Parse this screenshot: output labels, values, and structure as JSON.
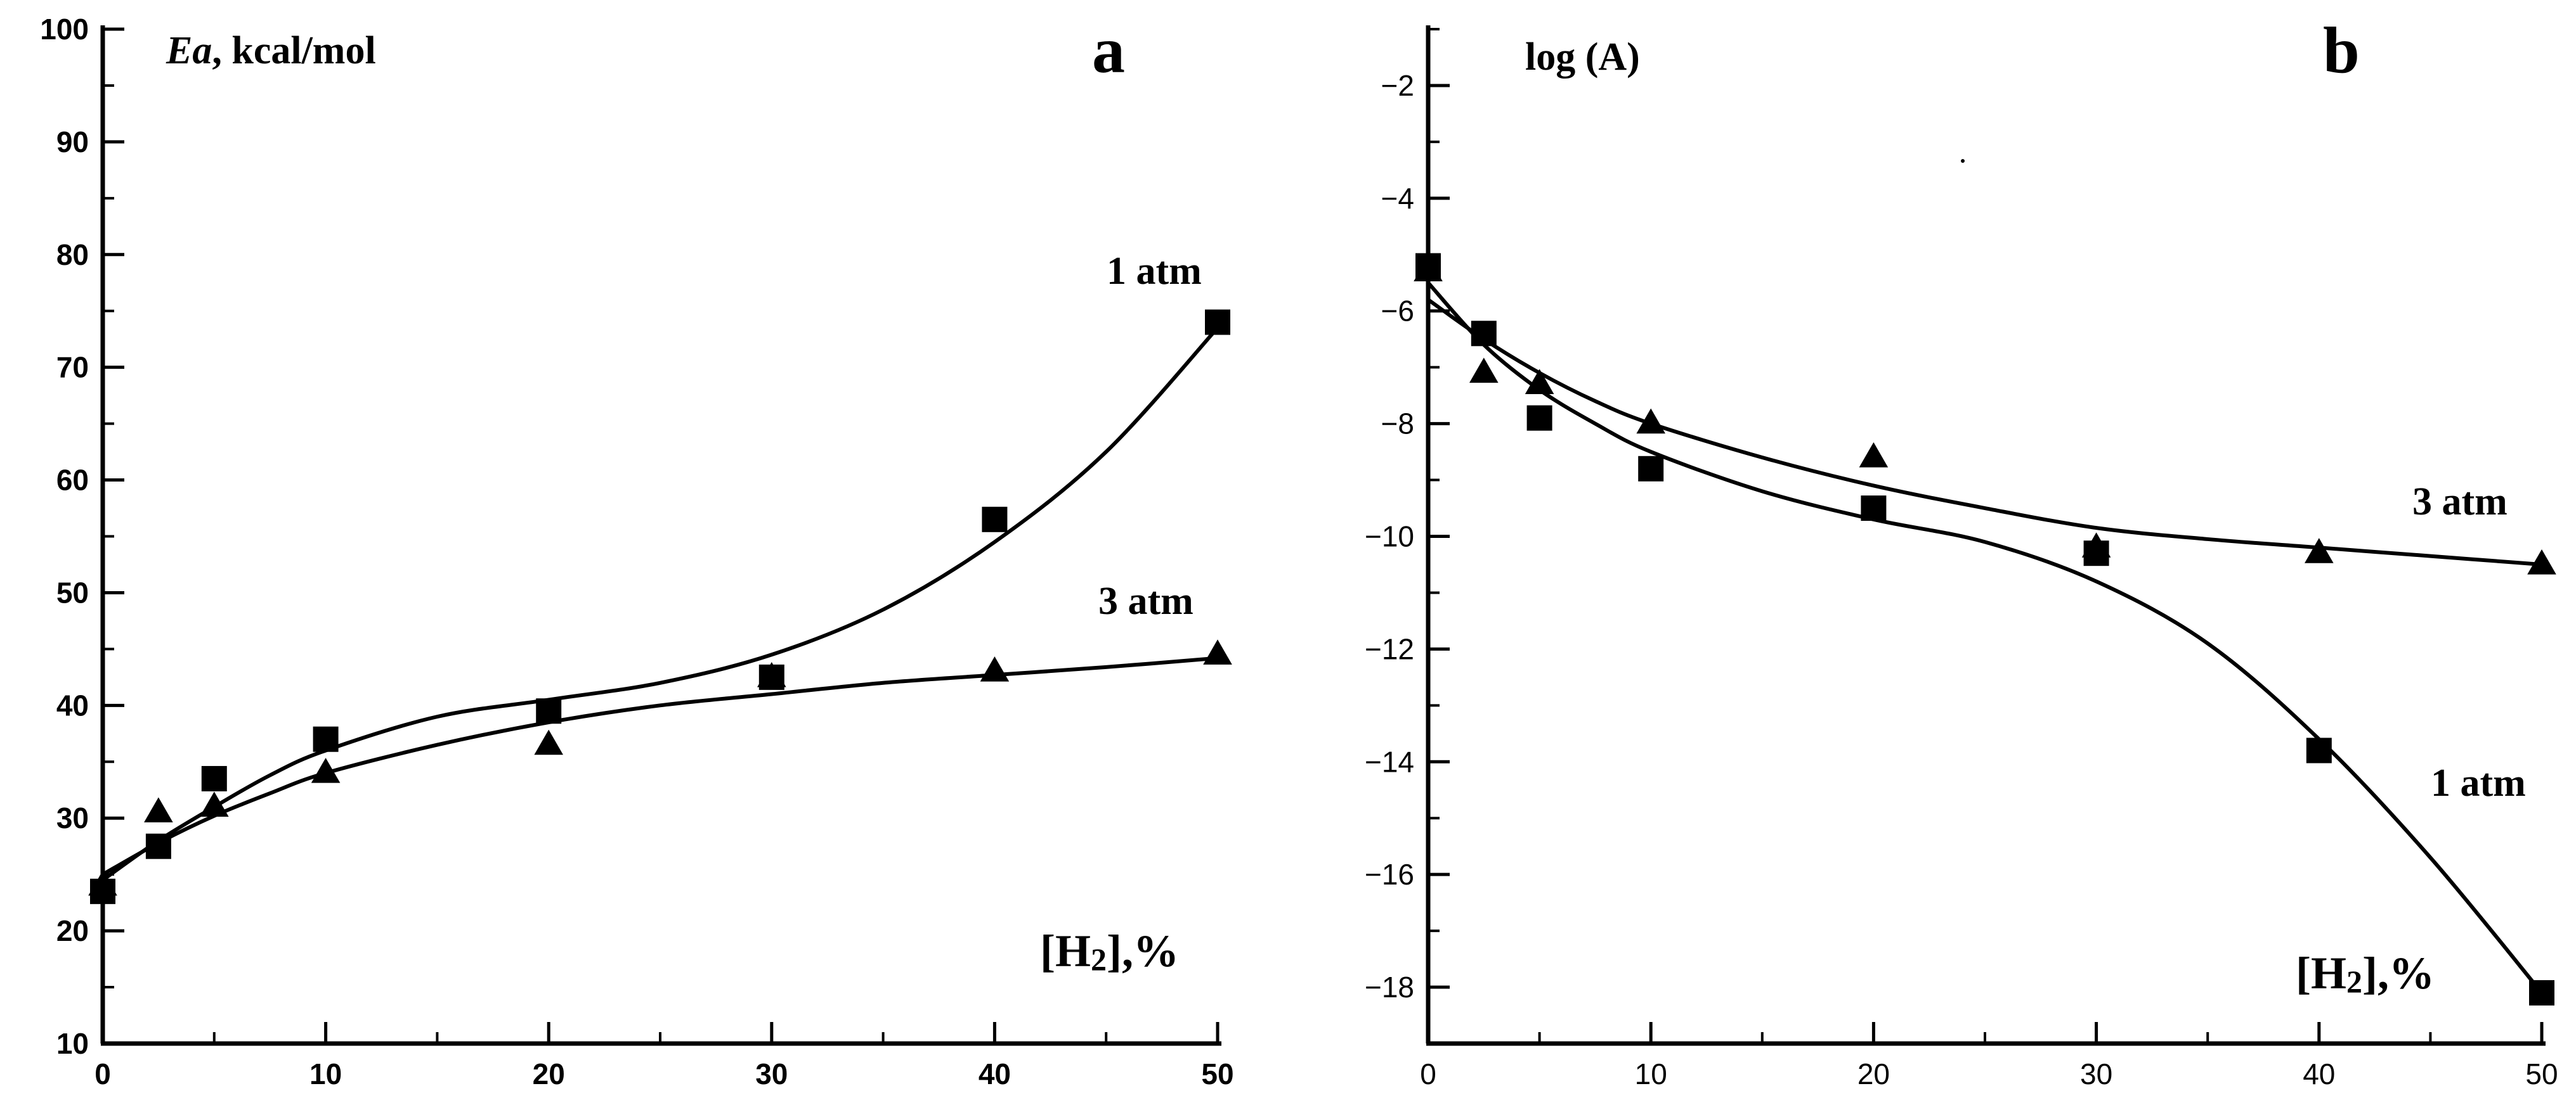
{
  "chart_data": [
    {
      "type": "scatter",
      "panel_label": "a",
      "ylabel_italic": "Ea",
      "ylabel_rest": ", kcal/mol",
      "xlabel_main": "[H",
      "xlabel_sub": "2",
      "xlabel_tail": "],%",
      "xlim": [
        0,
        50
      ],
      "ylim": [
        10,
        100
      ],
      "xticks": [
        0,
        10,
        20,
        30,
        40,
        50
      ],
      "yticks": [
        10,
        20,
        30,
        40,
        50,
        60,
        70,
        80,
        90,
        100
      ],
      "series": [
        {
          "name": "1 atm",
          "marker": "square",
          "x": [
            0,
            2.5,
            5,
            10,
            20,
            30,
            40,
            50
          ],
          "y": [
            23.5,
            27.5,
            33.5,
            37,
            39.5,
            42.5,
            56.5,
            74
          ],
          "fit": {
            "x": [
              0,
              2.5,
              5,
              7.5,
              10,
              15,
              20,
              25,
              30,
              35,
              40,
              45,
              50
            ],
            "y": [
              24.5,
              28,
              31,
              33.8,
              36,
              39,
              40.5,
              42,
              44.5,
              48.5,
              54.5,
              62.5,
              73.5
            ]
          }
        },
        {
          "name": "3 atm",
          "marker": "triangle",
          "x": [
            0,
            2.5,
            5,
            10,
            20,
            30,
            40,
            50
          ],
          "y": [
            24,
            30.5,
            31,
            34,
            36.5,
            42.5,
            43,
            44.5
          ],
          "fit": {
            "x": [
              0,
              2.5,
              5,
              7.5,
              10,
              15,
              20,
              25,
              30,
              35,
              40,
              45,
              50
            ],
            "y": [
              25,
              27.8,
              30.2,
              32.2,
              34,
              36.5,
              38.5,
              40,
              41,
              42,
              42.7,
              43.4,
              44.2
            ]
          }
        }
      ]
    },
    {
      "type": "scatter",
      "panel_label": "b",
      "ylabel": "log (A)",
      "xlabel_main": "[H",
      "xlabel_sub": "2",
      "xlabel_tail": "],%",
      "xlim": [
        0,
        50
      ],
      "ylim": [
        -19,
        -1
      ],
      "xticks": [
        0,
        10,
        20,
        30,
        40,
        50
      ],
      "yticks": [
        -2,
        -4,
        -6,
        -8,
        -10,
        -12,
        -14,
        -16,
        -18
      ],
      "ytick_labels": [
        "−2",
        "−4",
        "−6",
        "−8",
        "−10",
        "−12",
        "−14",
        "−16",
        "−18"
      ],
      "series": [
        {
          "name": "1 atm",
          "marker": "square",
          "x": [
            0,
            2.5,
            5,
            10,
            20,
            30,
            40,
            50
          ],
          "y": [
            -5.2,
            -6.4,
            -7.9,
            -8.8,
            -9.5,
            -10.3,
            -13.8,
            -18.1
          ],
          "fit": {
            "x": [
              0,
              2.5,
              5,
              7.5,
              10,
              15,
              20,
              25,
              30,
              35,
              40,
              45,
              50
            ],
            "y": [
              -5.5,
              -6.6,
              -7.4,
              -8.0,
              -8.5,
              -9.2,
              -9.7,
              -10.1,
              -10.8,
              -11.9,
              -13.6,
              -15.7,
              -18.1
            ]
          }
        },
        {
          "name": "3 atm",
          "marker": "triangle",
          "x": [
            0,
            2.5,
            5,
            10,
            20,
            30,
            40,
            50
          ],
          "y": [
            -5.3,
            -7.1,
            -7.3,
            -8.0,
            -8.6,
            -10.2,
            -10.3,
            -10.5
          ],
          "fit": {
            "x": [
              0,
              2.5,
              5,
              7.5,
              10,
              15,
              20,
              25,
              30,
              35,
              40,
              45,
              50
            ],
            "y": [
              -5.8,
              -6.5,
              -7.1,
              -7.6,
              -8.0,
              -8.6,
              -9.1,
              -9.5,
              -9.85,
              -10.05,
              -10.2,
              -10.35,
              -10.5
            ]
          }
        }
      ]
    }
  ]
}
